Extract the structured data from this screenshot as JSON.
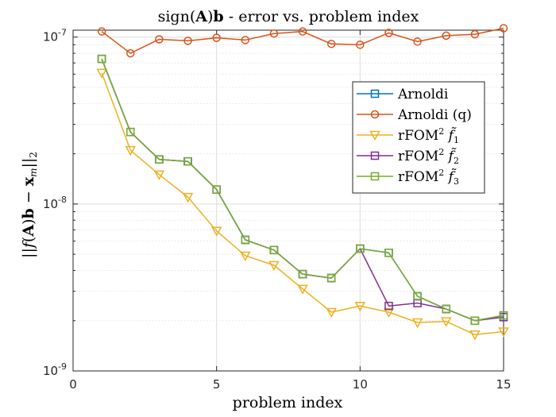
{
  "chart_data": {
    "type": "line",
    "title": "sign(A)b - error vs. problem index",
    "xlabel": "problem index",
    "ylabel": "||f(A)b − x_m||_2",
    "x_scale": "linear",
    "y_scale": "log",
    "xlim": [
      0,
      15
    ],
    "ylim": [
      1e-09,
      1.1e-07
    ],
    "x_ticks": [
      0,
      5,
      10,
      15
    ],
    "y_ticks": [
      {
        "value": 1e-09,
        "base": "10",
        "exp": "-9"
      },
      {
        "value": 1e-08,
        "base": "10",
        "exp": "-8"
      },
      {
        "value": 1e-07,
        "base": "10",
        "exp": "-7"
      }
    ],
    "grid": true,
    "minor_grid": true,
    "legend_position": "upper-right",
    "x": [
      1,
      2,
      3,
      4,
      5,
      6,
      7,
      8,
      9,
      10,
      11,
      12,
      13,
      14,
      15
    ],
    "series": [
      {
        "name": "Arnoldi",
        "label_main": "Arnoldi",
        "label_sup": "",
        "label_sub": "",
        "color": "#0072BD",
        "marker": "square",
        "values": [
          7.4e-08,
          2.7e-08,
          1.85e-08,
          1.8e-08,
          1.22e-08,
          6.1e-09,
          5.3e-09,
          3.8e-09,
          3.6e-09,
          5.4e-09,
          5.1e-09,
          2.8e-09,
          2.35e-09,
          2e-09,
          2.15e-09
        ]
      },
      {
        "name": "Arnoldi (q)",
        "label_main": "Arnoldi (q)",
        "label_sup": "",
        "label_sub": "",
        "color": "#D95319",
        "marker": "circle",
        "values": [
          1.08e-07,
          8e-08,
          9.7e-08,
          9.5e-08,
          9.9e-08,
          9.6e-08,
          1.05e-07,
          1.08e-07,
          9.1e-08,
          9e-08,
          1.06e-07,
          9.4e-08,
          1.02e-07,
          1.04e-07,
          1.13e-07
        ]
      },
      {
        "name": "rFOM² f̃₁",
        "label_main": "rFOM",
        "label_sup": "2",
        "label_sub": "1",
        "color": "#EDB120",
        "marker": "triangle-down",
        "values": [
          6.1e-08,
          2.1e-08,
          1.5e-08,
          1.1e-08,
          6.9e-09,
          4.9e-09,
          4.3e-09,
          3.1e-09,
          2.25e-09,
          2.45e-09,
          2.25e-09,
          1.95e-09,
          1.98e-09,
          1.65e-09,
          1.72e-09
        ]
      },
      {
        "name": "rFOM² f̃₂",
        "label_main": "rFOM",
        "label_sup": "2",
        "label_sub": "2",
        "color": "#7E2F8E",
        "marker": "square",
        "values": [
          7.4e-08,
          2.7e-08,
          1.85e-08,
          1.8e-08,
          1.22e-08,
          6.1e-09,
          5.3e-09,
          3.8e-09,
          3.6e-09,
          5.4e-09,
          2.45e-09,
          2.55e-09,
          2.35e-09,
          2e-09,
          2.1e-09
        ]
      },
      {
        "name": "rFOM² f̃₃",
        "label_main": "rFOM",
        "label_sup": "2",
        "label_sub": "3",
        "color": "#77AC30",
        "marker": "square",
        "values": [
          7.4e-08,
          2.7e-08,
          1.85e-08,
          1.8e-08,
          1.22e-08,
          6.1e-09,
          5.3e-09,
          3.8e-09,
          3.6e-09,
          5.4e-09,
          5.1e-09,
          2.8e-09,
          2.35e-09,
          2e-09,
          2.15e-09
        ]
      }
    ]
  }
}
